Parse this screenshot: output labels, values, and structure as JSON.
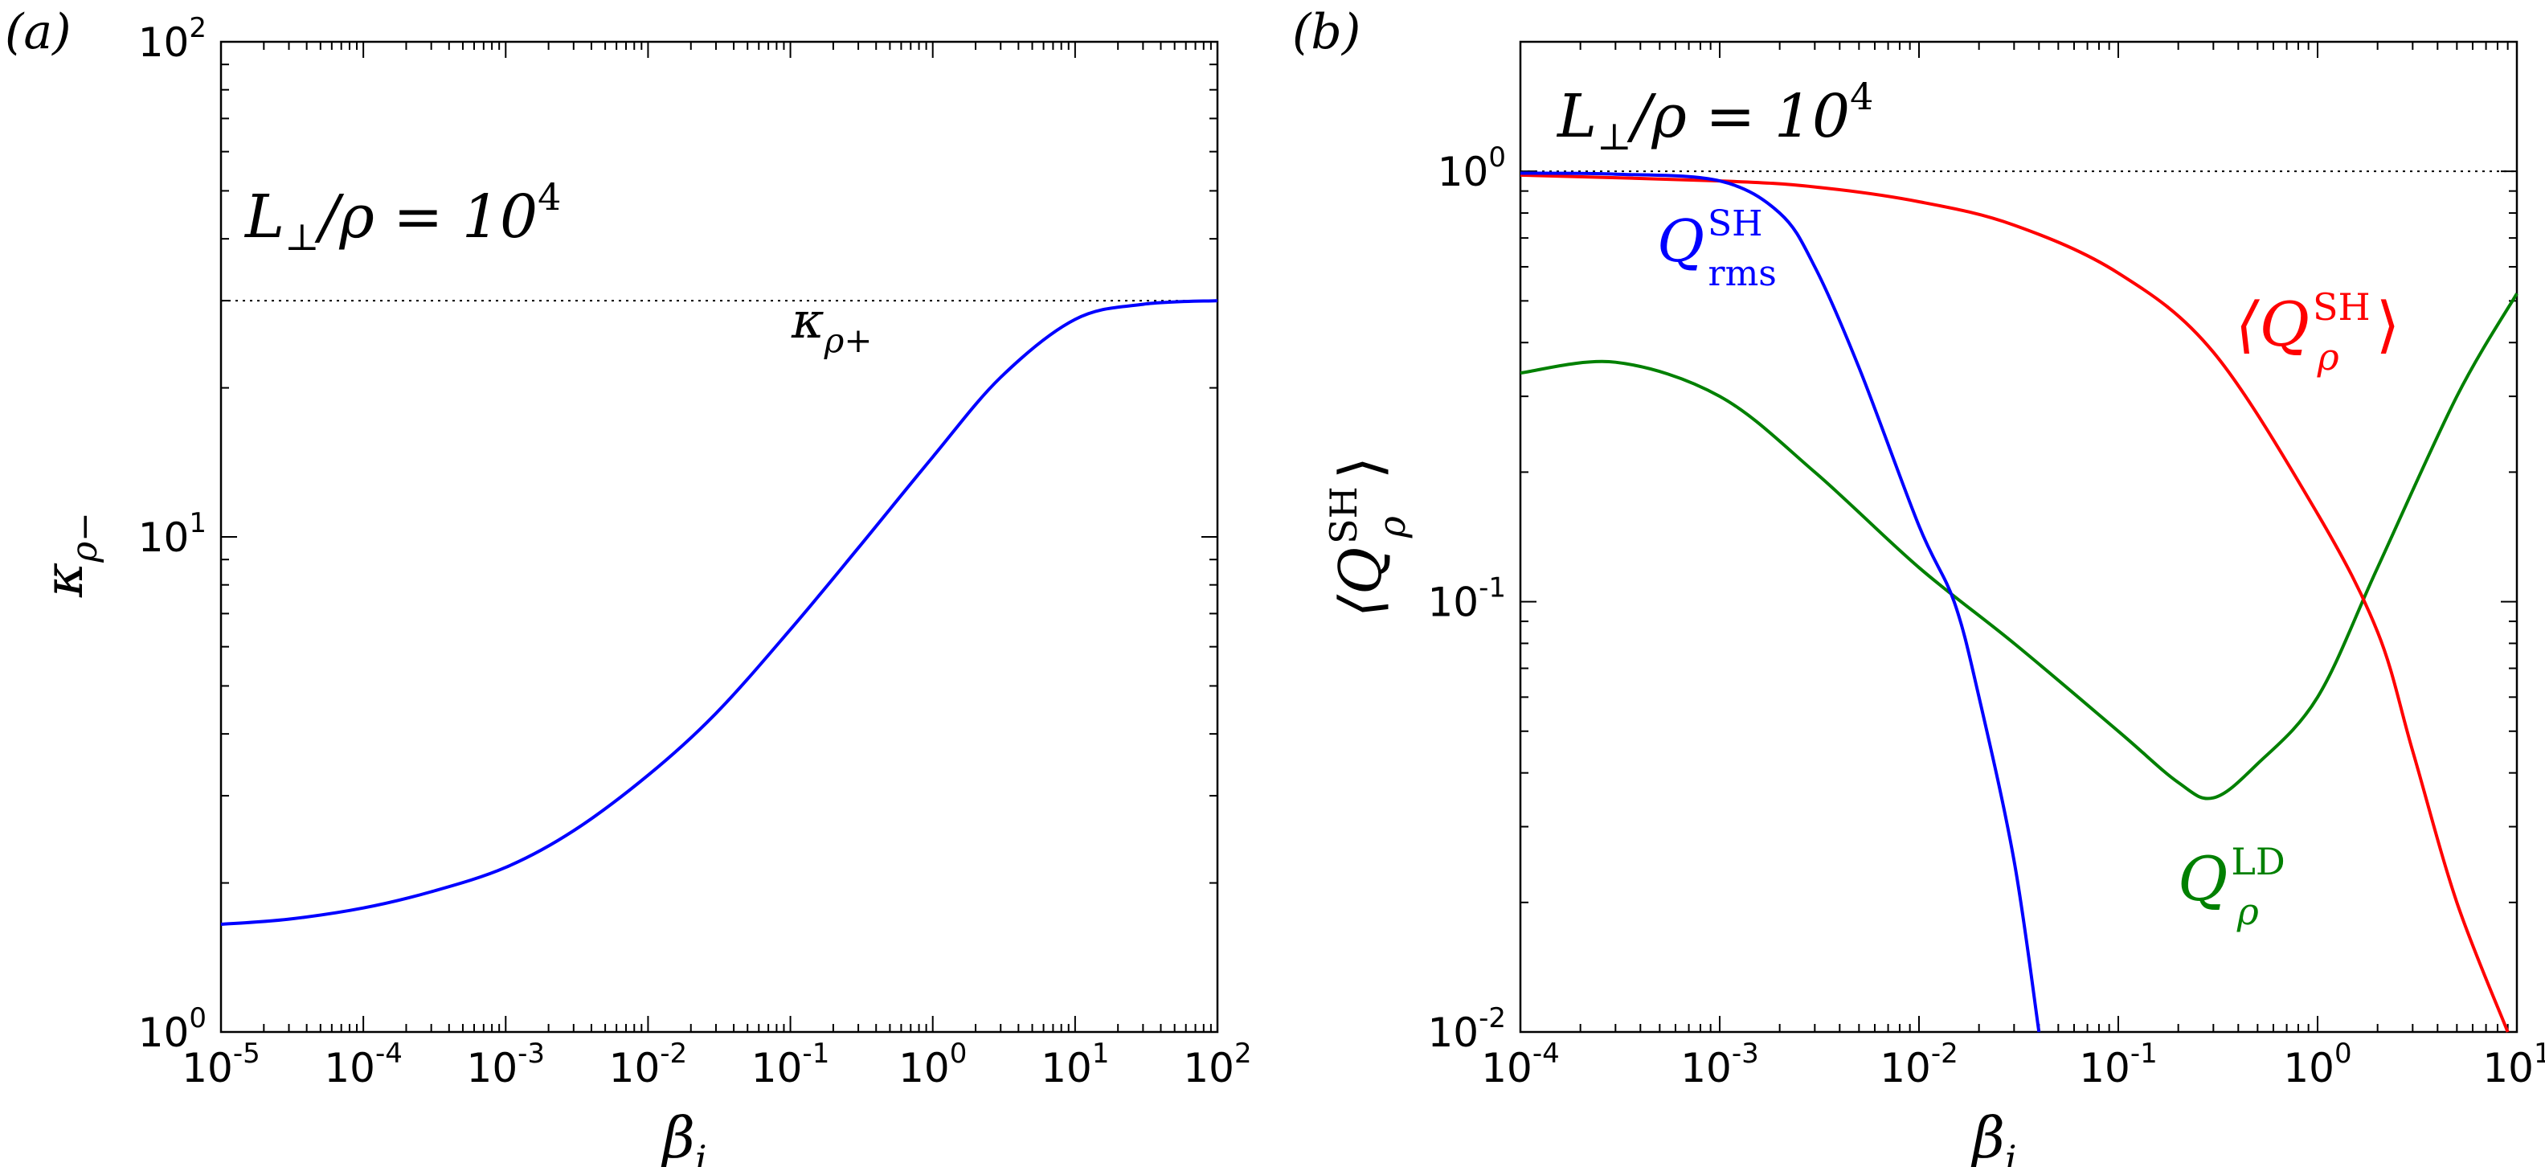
{
  "chart_data": [
    {
      "panel_label": "(a)",
      "type": "line",
      "x_scale": "log",
      "y_scale": "log",
      "xlim": [
        1e-05,
        100
      ],
      "ylim": [
        1,
        100
      ],
      "xlabel": "β_i",
      "ylabel": "κ_ρ−",
      "annotation": "L⊥/ρ = 10^4",
      "x_ticks": [
        {
          "base": "10",
          "exp": "-5"
        },
        {
          "base": "10",
          "exp": "-4"
        },
        {
          "base": "10",
          "exp": "-3"
        },
        {
          "base": "10",
          "exp": "-2"
        },
        {
          "base": "10",
          "exp": "-1"
        },
        {
          "base": "10",
          "exp": "0"
        },
        {
          "base": "10",
          "exp": "1"
        },
        {
          "base": "10",
          "exp": "2"
        }
      ],
      "y_ticks": [
        {
          "base": "10",
          "exp": "0"
        },
        {
          "base": "10",
          "exp": "1"
        },
        {
          "base": "10",
          "exp": "2"
        }
      ],
      "reference_line": {
        "y": 30,
        "style": "dotted",
        "label": "κ_ρ+"
      },
      "series": [
        {
          "color": "#0000ff",
          "x": [
            1e-05,
            3e-05,
            0.0001,
            0.0003,
            0.001,
            0.003,
            0.01,
            0.03,
            0.1,
            0.3,
            1,
            3,
            10,
            30,
            100
          ],
          "y": [
            1.65,
            1.69,
            1.78,
            1.92,
            2.15,
            2.55,
            3.3,
            4.4,
            6.5,
            9.5,
            14.5,
            21,
            27.5,
            29.5,
            30
          ]
        }
      ]
    },
    {
      "panel_label": "(b)",
      "type": "line",
      "x_scale": "log",
      "y_scale": "log",
      "xlim": [
        0.0001,
        10
      ],
      "ylim": [
        0.01,
        2
      ],
      "xlabel": "β_i",
      "ylabel": "⟨Q_ρ^SH⟩",
      "annotation": "L⊥/ρ = 10^4",
      "x_ticks": [
        {
          "base": "10",
          "exp": "-4"
        },
        {
          "base": "10",
          "exp": "-3"
        },
        {
          "base": "10",
          "exp": "-2"
        },
        {
          "base": "10",
          "exp": "-1"
        },
        {
          "base": "10",
          "exp": "0"
        },
        {
          "base": "10",
          "exp": "1"
        }
      ],
      "y_ticks": [
        {
          "base": "10",
          "exp": "-2"
        },
        {
          "base": "10",
          "exp": "-1"
        },
        {
          "base": "10",
          "exp": "0"
        }
      ],
      "reference_line": {
        "y": 1,
        "style": "dotted"
      },
      "series": [
        {
          "label": "Q_rms^SH",
          "color": "#0000ff",
          "x": [
            0.0001,
            0.0003,
            0.001,
            0.002,
            0.003,
            0.005,
            0.01,
            0.015,
            0.02,
            0.03,
            0.04
          ],
          "y": [
            0.99,
            0.985,
            0.95,
            0.8,
            0.6,
            0.35,
            0.15,
            0.1,
            0.06,
            0.025,
            0.01
          ]
        },
        {
          "label": "⟨Q_ρ^SH⟩",
          "color": "#ff0000",
          "x": [
            0.0001,
            0.001,
            0.003,
            0.01,
            0.03,
            0.1,
            0.3,
            1,
            2,
            3,
            5,
            9
          ],
          "y": [
            0.98,
            0.95,
            0.92,
            0.85,
            0.75,
            0.58,
            0.38,
            0.16,
            0.085,
            0.045,
            0.02,
            0.01
          ]
        },
        {
          "label": "Q_ρ^LD",
          "color": "#008000",
          "x": [
            0.0001,
            0.0003,
            0.001,
            0.003,
            0.01,
            0.03,
            0.1,
            0.2,
            0.3,
            0.5,
            1,
            2,
            5,
            10
          ],
          "y": [
            0.34,
            0.36,
            0.3,
            0.2,
            0.12,
            0.08,
            0.05,
            0.038,
            0.035,
            0.042,
            0.06,
            0.12,
            0.3,
            0.52
          ]
        }
      ]
    }
  ]
}
